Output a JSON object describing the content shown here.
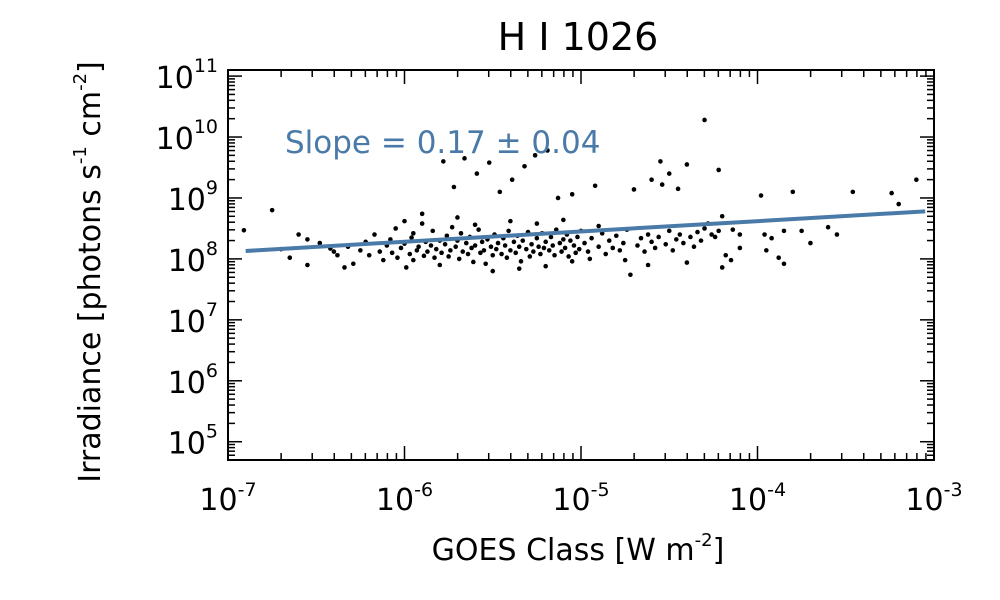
{
  "chart_data": {
    "type": "scatter",
    "title": "H I 1026",
    "xlabel": "GOES Class [W m",
    "xlabel_sup": "-2",
    "xlabel_end": "]",
    "ylabel": "Irradiance [photons s",
    "ylabel_sup1": "-1",
    "ylabel_mid": " cm",
    "ylabel_sup2": "-2",
    "ylabel_end": "]",
    "xscale": "log",
    "yscale": "log",
    "xlim_log10": [
      -7,
      -3
    ],
    "ylim_log10": [
      4.7,
      11.1
    ],
    "x_ticks": [
      {
        "base": "10",
        "exp": "-7",
        "log": -7
      },
      {
        "base": "10",
        "exp": "-6",
        "log": -6
      },
      {
        "base": "10",
        "exp": "-5",
        "log": -5
      },
      {
        "base": "10",
        "exp": "-4",
        "log": -4
      },
      {
        "base": "10",
        "exp": "-3",
        "log": -3
      }
    ],
    "y_ticks": [
      {
        "base": "10",
        "exp": "5",
        "log": 5
      },
      {
        "base": "10",
        "exp": "6",
        "log": 6
      },
      {
        "base": "10",
        "exp": "7",
        "log": 7
      },
      {
        "base": "10",
        "exp": "8",
        "log": 8
      },
      {
        "base": "10",
        "exp": "9",
        "log": 9
      },
      {
        "base": "10",
        "exp": "10",
        "log": 10
      },
      {
        "base": "10",
        "exp": "11",
        "log": 11
      }
    ],
    "annotation": "Slope = 0.17 ± 0.04",
    "fit_line": {
      "color": "#4a7aa8",
      "points_log10": [
        [
          -6.9,
          8.13
        ],
        [
          -3.05,
          8.78
        ]
      ]
    },
    "point_color": "#000000",
    "points_log10": [
      [
        -6.91,
        8.47
      ],
      [
        -6.75,
        8.8
      ],
      [
        -6.65,
        8.02
      ],
      [
        -6.55,
        8.32
      ],
      [
        -6.48,
        8.26
      ],
      [
        -6.42,
        8.17
      ],
      [
        -6.4,
        8.12
      ],
      [
        -6.38,
        8.06
      ],
      [
        -6.32,
        8.2
      ],
      [
        -6.29,
        7.92
      ],
      [
        -6.25,
        8.14
      ],
      [
        -6.22,
        8.28
      ],
      [
        -6.2,
        8.06
      ],
      [
        -6.17,
        8.4
      ],
      [
        -6.14,
        8.12
      ],
      [
        -6.12,
        7.98
      ],
      [
        -6.1,
        8.22
      ],
      [
        -6.08,
        8.32
      ],
      [
        -6.07,
        8.1
      ],
      [
        -6.05,
        8.5
      ],
      [
        -6.04,
        8.02
      ],
      [
        -6.02,
        8.18
      ],
      [
        -6.0,
        8.25
      ],
      [
        -5.99,
        7.86
      ],
      [
        -5.97,
        8.08
      ],
      [
        -5.96,
        8.35
      ],
      [
        -5.95,
        8.42
      ],
      [
        -5.93,
        8.14
      ],
      [
        -5.92,
        8.2
      ],
      [
        -5.9,
        8.58
      ],
      [
        -5.89,
        8.05
      ],
      [
        -5.88,
        8.28
      ],
      [
        -5.87,
        8.12
      ],
      [
        -5.85,
        8.22
      ],
      [
        -5.84,
        8.46
      ],
      [
        -5.83,
        8.02
      ],
      [
        -5.82,
        8.16
      ],
      [
        -5.8,
        8.3
      ],
      [
        -5.79,
        8.1
      ],
      [
        -5.78,
        9.6
      ],
      [
        -5.77,
        8.24
      ],
      [
        -5.76,
        8.38
      ],
      [
        -5.75,
        8.04
      ],
      [
        -5.74,
        8.14
      ],
      [
        -5.73,
        8.52
      ],
      [
        -5.72,
        9.18
      ],
      [
        -5.71,
        8.2
      ],
      [
        -5.7,
        8.3
      ],
      [
        -5.69,
        8.0
      ],
      [
        -5.68,
        8.42
      ],
      [
        -5.67,
        8.12
      ],
      [
        -5.66,
        9.65
      ],
      [
        -5.65,
        8.26
      ],
      [
        -5.64,
        8.08
      ],
      [
        -5.63,
        8.36
      ],
      [
        -5.62,
        8.18
      ],
      [
        -5.61,
        7.95
      ],
      [
        -5.6,
        8.22
      ],
      [
        -5.59,
        9.4
      ],
      [
        -5.58,
        8.48
      ],
      [
        -5.57,
        8.1
      ],
      [
        -5.56,
        8.28
      ],
      [
        -5.55,
        8.14
      ],
      [
        -5.54,
        7.92
      ],
      [
        -5.53,
        8.32
      ],
      [
        -5.52,
        9.58
      ],
      [
        -5.51,
        8.2
      ],
      [
        -5.5,
        8.06
      ],
      [
        -5.49,
        8.4
      ],
      [
        -5.48,
        8.16
      ],
      [
        -5.47,
        8.26
      ],
      [
        -5.46,
        9.1
      ],
      [
        -5.45,
        8.08
      ],
      [
        -5.44,
        8.34
      ],
      [
        -5.43,
        8.22
      ],
      [
        -5.42,
        8.02
      ],
      [
        -5.41,
        8.46
      ],
      [
        -5.4,
        8.14
      ],
      [
        -5.39,
        9.3
      ],
      [
        -5.38,
        8.28
      ],
      [
        -5.37,
        8.1
      ],
      [
        -5.36,
        8.38
      ],
      [
        -5.35,
        8.2
      ],
      [
        -5.34,
        7.96
      ],
      [
        -5.33,
        8.3
      ],
      [
        -5.32,
        9.52
      ],
      [
        -5.31,
        8.16
      ],
      [
        -5.3,
        8.44
      ],
      [
        -5.29,
        8.04
      ],
      [
        -5.28,
        8.24
      ],
      [
        -5.27,
        8.12
      ],
      [
        -5.26,
        9.7
      ],
      [
        -5.25,
        8.34
      ],
      [
        -5.24,
        8.2
      ],
      [
        -5.23,
        8.08
      ],
      [
        -5.22,
        8.42
      ],
      [
        -5.21,
        8.18
      ],
      [
        -5.2,
        8.28
      ],
      [
        -5.19,
        9.78
      ],
      [
        -5.18,
        8.14
      ],
      [
        -5.17,
        8.36
      ],
      [
        -5.16,
        8.22
      ],
      [
        -5.15,
        8.06
      ],
      [
        -5.14,
        8.48
      ],
      [
        -5.13,
        9.0
      ],
      [
        -5.12,
        8.26
      ],
      [
        -5.11,
        8.12
      ],
      [
        -5.1,
        8.32
      ],
      [
        -5.09,
        8.18
      ],
      [
        -5.08,
        8.4
      ],
      [
        -5.07,
        8.04
      ],
      [
        -5.06,
        8.3
      ],
      [
        -5.05,
        9.06
      ],
      [
        -5.04,
        8.22
      ],
      [
        -5.03,
        8.1
      ],
      [
        -5.02,
        8.36
      ],
      [
        -5.01,
        8.16
      ],
      [
        -5.0,
        8.46
      ],
      [
        -4.98,
        8.26
      ],
      [
        -4.96,
        8.12
      ],
      [
        -4.94,
        8.34
      ],
      [
        -4.92,
        9.2
      ],
      [
        -4.9,
        8.2
      ],
      [
        -4.88,
        8.42
      ],
      [
        -4.86,
        8.08
      ],
      [
        -4.84,
        8.3
      ],
      [
        -4.82,
        8.18
      ],
      [
        -4.8,
        8.38
      ],
      [
        -4.78,
        8.14
      ],
      [
        -4.76,
        8.26
      ],
      [
        -4.74,
        8.48
      ],
      [
        -4.72,
        7.74
      ],
      [
        -4.7,
        9.14
      ],
      [
        -4.68,
        8.22
      ],
      [
        -4.66,
        8.34
      ],
      [
        -4.64,
        8.12
      ],
      [
        -4.62,
        8.4
      ],
      [
        -4.6,
        8.28
      ],
      [
        -4.58,
        8.18
      ],
      [
        -4.56,
        8.36
      ],
      [
        -4.54,
        9.22
      ],
      [
        -4.52,
        8.24
      ],
      [
        -4.5,
        8.46
      ],
      [
        -4.48,
        8.14
      ],
      [
        -4.46,
        8.32
      ],
      [
        -4.44,
        8.4
      ],
      [
        -4.42,
        8.26
      ],
      [
        -4.4,
        9.55
      ],
      [
        -4.38,
        8.36
      ],
      [
        -4.36,
        8.2
      ],
      [
        -4.34,
        8.44
      ],
      [
        -4.32,
        8.3
      ],
      [
        -4.3,
        8.5
      ],
      [
        -4.28,
        8.58
      ],
      [
        -4.26,
        8.4
      ],
      [
        -4.24,
        8.36
      ],
      [
        -4.22,
        8.46
      ],
      [
        -4.3,
        10.28
      ],
      [
        -4.22,
        9.46
      ],
      [
        -4.14,
        8.48
      ],
      [
        -4.1,
        8.4
      ],
      [
        -3.98,
        9.04
      ],
      [
        -3.96,
        8.4
      ],
      [
        -3.85,
        8.46
      ],
      [
        -3.8,
        9.1
      ],
      [
        -3.75,
        8.46
      ],
      [
        -3.6,
        8.52
      ],
      [
        -3.46,
        9.1
      ],
      [
        -3.24,
        9.08
      ],
      [
        -3.92,
        8.34
      ],
      [
        -3.95,
        8.14
      ],
      [
        -3.88,
        8.02
      ],
      [
        -4.2,
        7.86
      ],
      [
        -4.18,
        8.06
      ],
      [
        -4.15,
        7.98
      ],
      [
        -4.1,
        8.18
      ],
      [
        -3.85,
        7.92
      ],
      [
        -3.7,
        8.26
      ],
      [
        -3.55,
        8.4
      ],
      [
        -3.2,
        8.9
      ],
      [
        -3.1,
        9.3
      ],
      [
        -4.6,
        9.3
      ],
      [
        -4.5,
        9.4
      ],
      [
        -4.45,
        9.15
      ],
      [
        -4.55,
        9.6
      ],
      [
        -4.2,
        8.7
      ],
      [
        -4.9,
        8.54
      ],
      [
        -5.1,
        8.64
      ],
      [
        -5.25,
        8.58
      ],
      [
        -5.4,
        8.62
      ],
      [
        -5.6,
        8.56
      ],
      [
        -5.7,
        8.68
      ],
      [
        -5.35,
        7.84
      ],
      [
        -5.5,
        7.8
      ],
      [
        -5.8,
        7.9
      ],
      [
        -5.95,
        7.98
      ],
      [
        -5.2,
        7.88
      ],
      [
        -5.05,
        7.96
      ],
      [
        -4.95,
        8.0
      ],
      [
        -4.75,
        7.98
      ],
      [
        -4.62,
        7.9
      ],
      [
        -4.4,
        7.94
      ],
      [
        -6.34,
        7.86
      ],
      [
        -6.55,
        7.9
      ],
      [
        -6.7,
        8.16
      ],
      [
        -6.6,
        8.4
      ],
      [
        -6.0,
        8.62
      ],
      [
        -5.9,
        8.74
      ]
    ]
  }
}
